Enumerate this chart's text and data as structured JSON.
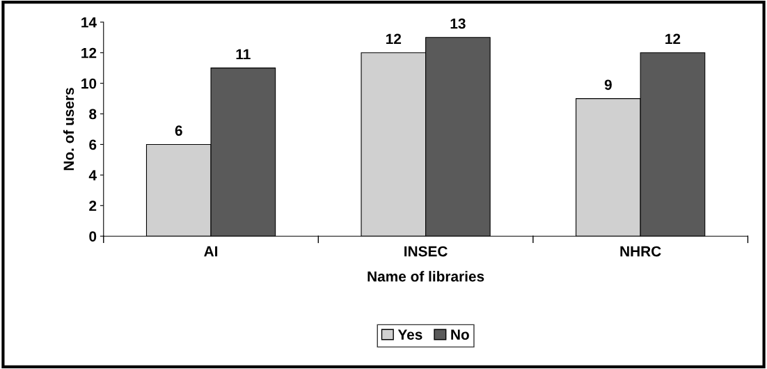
{
  "chart_data": {
    "type": "bar",
    "xlabel": "Name of libraries",
    "ylabel": "No. of users",
    "categories": [
      "AI",
      "INSEC",
      "NHRC"
    ],
    "series": [
      {
        "name": "Yes",
        "color": "#d0d0d0",
        "values": [
          6,
          12,
          9
        ]
      },
      {
        "name": "No",
        "color": "#5a5a5a",
        "values": [
          11,
          13,
          12
        ]
      }
    ],
    "ylim": [
      0,
      14
    ],
    "yticks": [
      0,
      2,
      4,
      6,
      8,
      10,
      12,
      14
    ],
    "data_labels": true,
    "grid": false,
    "legend": "bottom"
  }
}
